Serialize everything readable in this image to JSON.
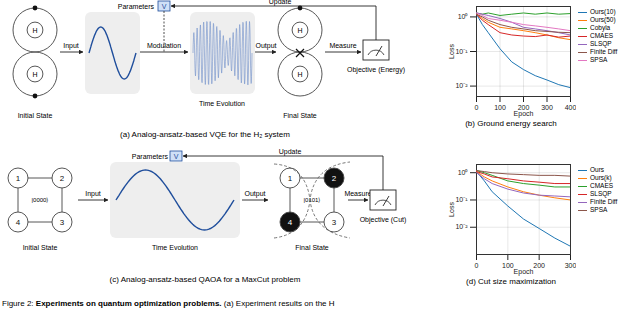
{
  "diagrams": [
    {
      "caption": "(a) Analog-ansatz-based VQE for the H₂ system",
      "labels": {
        "initial": "Initial State",
        "time": "Time Evolution",
        "final": "Final State",
        "input": "Input",
        "modulation": "Modulation",
        "output": "Output",
        "measure": "Measure",
        "objective": "Objective (Energy)",
        "update": "Update",
        "parameters": "Parameters",
        "param_symbol": "V",
        "atom": "H"
      }
    },
    {
      "caption": "(c) Analog-ansatz-based QAOA for a MaxCut problem",
      "labels": {
        "initial": "Initial State",
        "time": "Time Evolution",
        "final": "Final State",
        "input": "Input",
        "output": "Output",
        "measure": "Measure",
        "objective": "Objective (Cut)",
        "update": "Update",
        "parameters": "Parameters",
        "param_symbol": "V"
      },
      "nodes": [
        "1",
        "2",
        "3",
        "4"
      ],
      "initial_ket": "|0000⟩",
      "final_ket": "|0101⟩",
      "final_black": [
        "2",
        "4"
      ]
    }
  ],
  "figure_caption": {
    "label": "Figure 2:",
    "bold": "Experiments on quantum optimization problems.",
    "rest": "(a) Experiment results on the H"
  },
  "chart_data": [
    {
      "type": "line",
      "title": "(b) Ground energy search",
      "xlabel": "Epoch",
      "ylabel": "Loss",
      "log": "y",
      "grid": true,
      "legend": "right",
      "x": [
        0,
        25,
        50,
        100,
        150,
        200,
        250,
        300,
        350,
        400
      ],
      "xlim": [
        0,
        400
      ],
      "xticks": [
        0,
        100,
        200,
        300,
        400
      ],
      "ylim": [
        0.005,
        2
      ],
      "yticks": [
        {
          "value": 1,
          "label": "10⁰"
        },
        {
          "value": 0.1,
          "label": "10⁻¹"
        },
        {
          "value": 0.01,
          "label": "10⁻²"
        }
      ],
      "series": [
        {
          "name": "Ours(10)",
          "color": "#1f77b4",
          "values": [
            1.2,
            0.6,
            0.35,
            0.12,
            0.05,
            0.03,
            0.02,
            0.015,
            0.011,
            0.009
          ]
        },
        {
          "name": "Ours(50)",
          "color": "#ff7f0e",
          "values": [
            1.2,
            0.9,
            0.7,
            0.5,
            0.45,
            0.4,
            0.35,
            0.3,
            0.25,
            0.22
          ]
        },
        {
          "name": "Cobyla",
          "color": "#2ca02c",
          "values": [
            1.3,
            1.2,
            1.3,
            1.1,
            1.2,
            1.3,
            1.2,
            1.3,
            1.2,
            1.25
          ]
        },
        {
          "name": "CMAES",
          "color": "#d62728",
          "values": [
            1.2,
            0.8,
            0.6,
            0.35,
            0.3,
            0.28,
            0.27,
            0.3,
            0.26,
            0.28
          ]
        },
        {
          "name": "SLSQP",
          "color": "#9467bd",
          "values": [
            1.3,
            1.2,
            1.1,
            0.9,
            0.7,
            0.5,
            0.45,
            0.4,
            0.35,
            0.3
          ]
        },
        {
          "name": "Finite Diff",
          "color": "#8c564b",
          "values": [
            1.2,
            1.0,
            0.8,
            0.6,
            0.5,
            0.45,
            0.4,
            0.38,
            0.36,
            0.35
          ]
        },
        {
          "name": "SPSA",
          "color": "#e377c2",
          "values": [
            1.3,
            1.1,
            0.9,
            0.8,
            0.7,
            0.6,
            0.55,
            0.5,
            0.45,
            0.4
          ]
        }
      ]
    },
    {
      "type": "line",
      "title": "(d) Cut size maximization",
      "xlabel": "Epoch",
      "ylabel": "Loss",
      "log": "y",
      "grid": true,
      "legend": "right",
      "x": [
        0,
        25,
        50,
        100,
        150,
        200,
        250,
        300
      ],
      "xlim": [
        0,
        300
      ],
      "xticks": [
        0,
        100,
        200,
        300
      ],
      "ylim": [
        0.001,
        2
      ],
      "yticks": [
        {
          "value": 1,
          "label": "10⁰"
        },
        {
          "value": 0.1,
          "label": "10⁻¹"
        },
        {
          "value": 0.01,
          "label": "10⁻²"
        }
      ],
      "series": [
        {
          "name": "Ours",
          "color": "#1f77b4",
          "values": [
            1.1,
            0.5,
            0.2,
            0.06,
            0.02,
            0.009,
            0.004,
            0.002
          ]
        },
        {
          "name": "Ours(k)",
          "color": "#ff7f0e",
          "values": [
            1.1,
            0.7,
            0.5,
            0.3,
            0.2,
            0.15,
            0.12,
            0.1
          ]
        },
        {
          "name": "CMAES",
          "color": "#2ca02c",
          "values": [
            1.2,
            1.0,
            0.8,
            0.5,
            0.4,
            0.35,
            0.3,
            0.3
          ]
        },
        {
          "name": "SLSQP",
          "color": "#d62728",
          "values": [
            1.1,
            0.9,
            0.7,
            0.6,
            0.5,
            0.45,
            0.4,
            0.4
          ]
        },
        {
          "name": "Finite Diff",
          "color": "#9467bd",
          "values": [
            1.0,
            0.6,
            0.4,
            0.25,
            0.18,
            0.15,
            0.14,
            0.13
          ]
        },
        {
          "name": "SPSA",
          "color": "#8c564b",
          "values": [
            1.2,
            1.1,
            1.0,
            0.9,
            0.85,
            0.8,
            0.8,
            0.75
          ]
        }
      ]
    }
  ]
}
